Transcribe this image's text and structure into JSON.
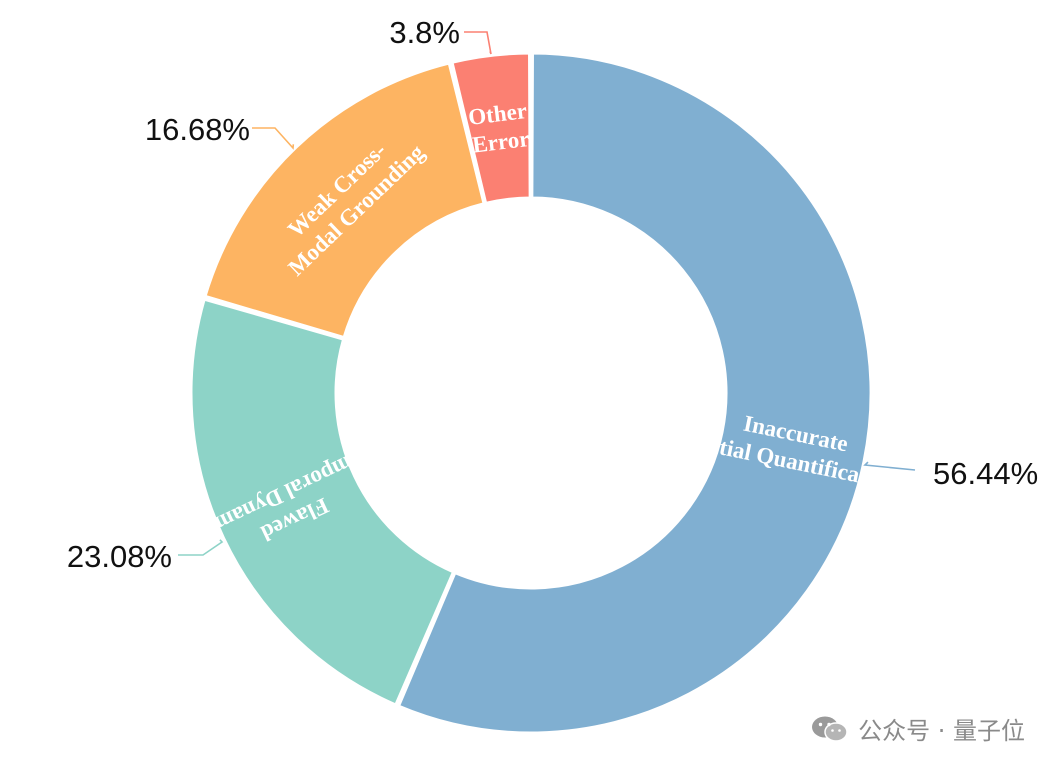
{
  "chart_data": {
    "type": "pie",
    "title": "",
    "donut": true,
    "categories": [
      "Inaccurate Spatial Quantification",
      "Flawed Temporal Dynamics",
      "Weak Cross-Modal Grounding",
      "Other Error"
    ],
    "values": [
      56.44,
      23.08,
      16.68,
      3.8
    ],
    "value_labels": [
      "56.44%",
      "23.08%",
      "16.68%",
      "3.8%"
    ],
    "slice_labels": [
      [
        "Inaccurate",
        "Spatial Quantification"
      ],
      [
        "Flawed",
        "Temporal Dynamics"
      ],
      [
        "Weak Cross-",
        "Modal Grounding"
      ],
      [
        "Other",
        "Error"
      ]
    ],
    "colors": [
      "#80AFD1",
      "#8DD3C7",
      "#FDB462",
      "#FB8072"
    ],
    "legend": "none"
  },
  "watermark": {
    "icon": "wechat-icon",
    "text": "公众号 · 量子位"
  }
}
